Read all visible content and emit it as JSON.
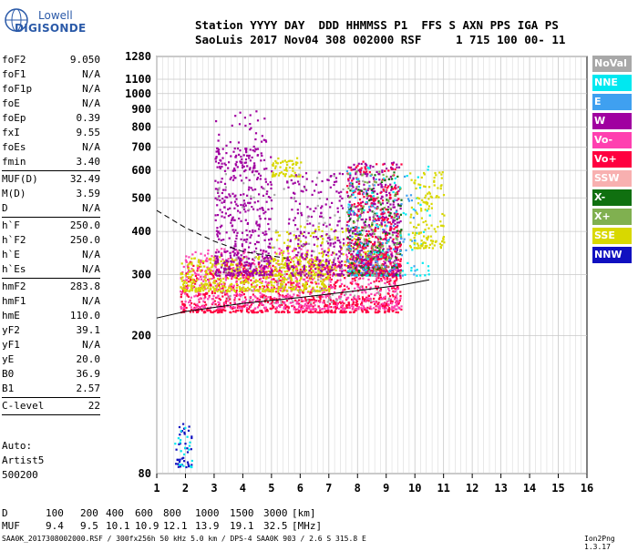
{
  "logo": {
    "line1": "Lowell",
    "line2": "DIGISONDE"
  },
  "header": {
    "line1": "Station YYYY DAY  DDD HHMMSS P1  FFS S AXN PPS IGA PS",
    "line2": "SaoLuis 2017 Nov04 308 002000 RSF     1 715 100 00- 11"
  },
  "params": [
    {
      "k": "foF2",
      "v": "9.050"
    },
    {
      "k": "foF1",
      "v": "N/A"
    },
    {
      "k": "foF1p",
      "v": "N/A"
    },
    {
      "k": "foE",
      "v": "N/A"
    },
    {
      "k": "foEp",
      "v": "0.39"
    },
    {
      "k": "fxI",
      "v": "9.55"
    },
    {
      "k": "foEs",
      "v": "N/A"
    },
    {
      "k": "fmin",
      "v": "3.40"
    },
    {
      "sep": true
    },
    {
      "k": "MUF(D)",
      "v": "32.49"
    },
    {
      "k": "M(D)",
      "v": "3.59"
    },
    {
      "k": "D",
      "v": "N/A"
    },
    {
      "sep": true
    },
    {
      "k": "h`F",
      "v": "250.0"
    },
    {
      "k": "h`F2",
      "v": "250.0"
    },
    {
      "k": "h`E",
      "v": "N/A"
    },
    {
      "k": "h`Es",
      "v": "N/A"
    },
    {
      "sep": true
    },
    {
      "k": "hmF2",
      "v": "283.8"
    },
    {
      "k": "hmF1",
      "v": "N/A"
    },
    {
      "k": "hmE",
      "v": "110.0"
    },
    {
      "k": "yF2",
      "v": "39.1"
    },
    {
      "k": "yF1",
      "v": "N/A"
    },
    {
      "k": "yE",
      "v": "20.0"
    },
    {
      "k": "B0",
      "v": "36.9"
    },
    {
      "k": "B1",
      "v": "2.57"
    },
    {
      "sep": true
    },
    {
      "k": "C-level",
      "v": "22"
    },
    {
      "sep": true
    }
  ],
  "auto": {
    "line1": "Auto:",
    "line2": "Artist5",
    "line3": "500200"
  },
  "legend": [
    {
      "label": "NoVal",
      "color": "#a8a8a8"
    },
    {
      "label": "NNE",
      "color": "#00e8f0"
    },
    {
      "label": "E",
      "color": "#3fa0f0"
    },
    {
      "label": "W",
      "color": "#a000a0"
    },
    {
      "label": "Vo-",
      "color": "#ff40b0"
    },
    {
      "label": "Vo+",
      "color": "#ff0040"
    },
    {
      "label": "SSW",
      "color": "#f8b0b0"
    },
    {
      "label": "X-",
      "color": "#107010"
    },
    {
      "label": "X+",
      "color": "#80b050"
    },
    {
      "label": "SSE",
      "color": "#d8d800"
    },
    {
      "label": "NNW",
      "color": "#1010c0"
    }
  ],
  "chart_data": {
    "type": "scatter",
    "xlim": [
      1,
      16
    ],
    "ylim": [
      80,
      1280
    ],
    "x_ticks": [
      1,
      2,
      3,
      4,
      5,
      6,
      7,
      8,
      9,
      10,
      11,
      12,
      13,
      14,
      15,
      16
    ],
    "y_ticks": [
      80,
      200,
      300,
      400,
      500,
      600,
      700,
      800,
      900,
      1000,
      1100,
      1280
    ],
    "grid": true,
    "axis_colors": {
      "xgrid": "#c8c8c8",
      "ygrid": "#c8c8c8"
    },
    "y_scale": "log",
    "clusters": [
      {
        "color_index": 5,
        "xr": [
          1.8,
          9.5
        ],
        "yr": [
          235,
          330
        ],
        "n": 900
      },
      {
        "color_index": 4,
        "xr": [
          1.8,
          9.5
        ],
        "yr": [
          240,
          360
        ],
        "n": 700
      },
      {
        "color_index": 9,
        "xr": [
          1.8,
          7.0
        ],
        "yr": [
          270,
          340
        ],
        "n": 500
      },
      {
        "color_index": 9,
        "xr": [
          5.0,
          9.0
        ],
        "yr": [
          300,
          420
        ],
        "n": 250
      },
      {
        "color_index": 3,
        "xr": [
          3.0,
          5.0
        ],
        "yr": [
          300,
          700
        ],
        "n": 450
      },
      {
        "color_index": 3,
        "xr": [
          5.5,
          7.5
        ],
        "yr": [
          300,
          600
        ],
        "n": 250
      },
      {
        "color_index": 3,
        "xr": [
          7.6,
          9.5
        ],
        "yr": [
          300,
          640
        ],
        "n": 500
      },
      {
        "color_index": 5,
        "xr": [
          7.6,
          9.5
        ],
        "yr": [
          300,
          640
        ],
        "n": 300
      },
      {
        "color_index": 7,
        "xr": [
          7.6,
          9.5
        ],
        "yr": [
          300,
          600
        ],
        "n": 120
      },
      {
        "color_index": 8,
        "xr": [
          7.6,
          9.5
        ],
        "yr": [
          300,
          600
        ],
        "n": 120
      },
      {
        "color_index": 1,
        "xr": [
          7.6,
          10.5
        ],
        "yr": [
          300,
          620
        ],
        "n": 90
      },
      {
        "color_index": 2,
        "xr": [
          7.6,
          10.0
        ],
        "yr": [
          300,
          620
        ],
        "n": 90
      },
      {
        "color_index": 9,
        "xr": [
          9.8,
          11.0
        ],
        "yr": [
          360,
          600
        ],
        "n": 140
      },
      {
        "color_index": 10,
        "xr": [
          1.6,
          2.2
        ],
        "yr": [
          84,
          112
        ],
        "n": 40
      },
      {
        "color_index": 1,
        "xr": [
          1.6,
          2.2
        ],
        "yr": [
          84,
          112
        ],
        "n": 20
      },
      {
        "color_index": 3,
        "xr": [
          3.0,
          4.8
        ],
        "yr": [
          600,
          900
        ],
        "n": 60
      },
      {
        "color_index": 9,
        "xr": [
          5.0,
          6.0
        ],
        "yr": [
          580,
          660
        ],
        "n": 60
      },
      {
        "color_index": 0,
        "xr": [
          3.0,
          9.5
        ],
        "yr": [
          250,
          600
        ],
        "n": 120
      }
    ],
    "curves": [
      {
        "name": "",
        "points": [
          [
            1.0,
            225
          ],
          [
            2,
            235
          ],
          [
            4,
            248
          ],
          [
            6,
            258
          ],
          [
            8,
            270
          ],
          [
            9.5,
            280
          ],
          [
            10.5,
            290
          ]
        ]
      },
      {
        "name": "",
        "dashed": true,
        "points": [
          [
            1.0,
            460
          ],
          [
            2,
            410
          ],
          [
            3,
            375
          ],
          [
            4,
            350
          ],
          [
            5.5,
            335
          ]
        ]
      }
    ]
  },
  "table": {
    "d_label": "D",
    "d_values": [
      "100",
      "200",
      "400",
      "600",
      "800",
      "1000",
      "1500",
      "3000"
    ],
    "d_unit": "[km]",
    "muf_label": "MUF",
    "muf_values": [
      "9.4",
      "9.5",
      "10.1",
      "10.9",
      "12.1",
      "13.9",
      "19.1",
      "32.5"
    ],
    "muf_unit": "[MHz]"
  },
  "footer": {
    "info": "SAA0K_2017308002000.RSF / 300fx256h 50 kHz 5.0 km / DPS-4 SAA0K 903 / 2.6 S 315.8 E",
    "version": "Ion2Png 1.3.17"
  }
}
